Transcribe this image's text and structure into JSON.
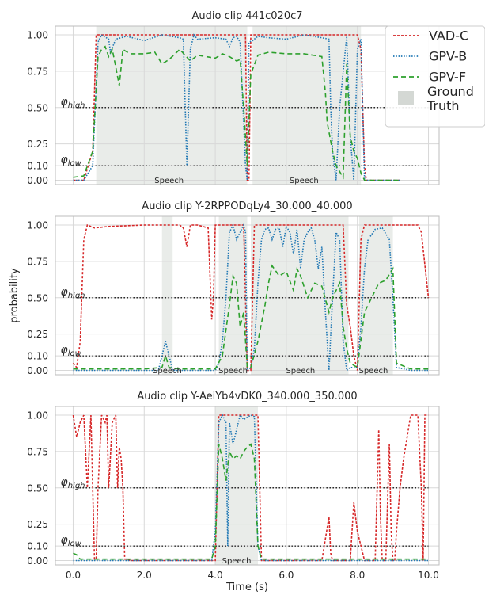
{
  "chart_data": {
    "type": "line",
    "xlabel": "Time (s)",
    "ylabel": "probability",
    "xlim": [
      -0.5,
      10.3
    ],
    "ylim": [
      -0.03,
      1.06
    ],
    "x_ticks": [
      "0.0",
      "2.0",
      "4.0",
      "6.0",
      "8.0",
      "10.0"
    ],
    "x_tick_values": [
      0,
      2,
      4,
      6,
      8,
      10
    ],
    "y_ticks": [
      "0.00",
      "0.10",
      "0.25",
      "0.50",
      "0.75",
      "1.00"
    ],
    "y_tick_values": [
      0,
      0.1,
      0.25,
      0.5,
      0.75,
      1.0
    ],
    "grid": true,
    "thresholds": [
      {
        "value": 0.5,
        "label": "φ",
        "sub": "high"
      },
      {
        "value": 0.1,
        "label": "φ",
        "sub": "low"
      }
    ],
    "legend": {
      "placement": "top-right",
      "entries": [
        {
          "name": "VAD-C",
          "color": "#d62728",
          "style": "dotted-dense"
        },
        {
          "name": "GPV-B",
          "color": "#1f77b4",
          "style": "dotted"
        },
        {
          "name": "GPV-F",
          "color": "#2ca02c",
          "style": "dashed"
        },
        {
          "name": "Ground\nTruth",
          "color": "#d4d8d4",
          "style": "patch"
        }
      ]
    },
    "panels": [
      {
        "title": "Audio clip 441c020c7",
        "ground_truth": [
          {
            "start": 0.65,
            "end": 4.9,
            "label": "Speech"
          },
          {
            "start": 5.05,
            "end": 8.1,
            "label": "Speech"
          }
        ],
        "series": [
          {
            "name": "VAD-C",
            "x": [
              0,
              0.3,
              0.55,
              0.65,
              1.0,
              2.0,
              3.0,
              4.0,
              4.85,
              4.9,
              4.95,
              5.0,
              6.0,
              7.0,
              7.5,
              8.0,
              8.1,
              8.2,
              8.25,
              9.2
            ],
            "y": [
              0,
              0,
              0.2,
              1.0,
              1.0,
              1.0,
              1.0,
              1.0,
              1.0,
              0.0,
              0.0,
              1.0,
              1.0,
              1.0,
              1.0,
              1.0,
              0.9,
              0.1,
              0.0,
              0.0
            ]
          },
          {
            "name": "GPV-B",
            "x": [
              0,
              0.3,
              0.55,
              0.7,
              0.8,
              1.0,
              1.05,
              1.2,
              1.5,
              2.0,
              2.5,
              3.0,
              3.1,
              3.2,
              3.3,
              3.4,
              3.5,
              4.0,
              4.3,
              4.4,
              4.5,
              4.6,
              4.7,
              4.85,
              4.9,
              4.95,
              5.05,
              5.2,
              5.5,
              6.0,
              6.5,
              7.0,
              7.2,
              7.25,
              7.3,
              7.4,
              7.5,
              7.7,
              7.8,
              7.9,
              8.0,
              8.1,
              8.2,
              9.2
            ],
            "y": [
              0,
              0,
              0.1,
              0.95,
              1.0,
              0.97,
              0.88,
              0.97,
              0.99,
              0.96,
              1.0,
              0.98,
              0.97,
              0.1,
              0.9,
              1.0,
              0.97,
              0.98,
              0.97,
              0.92,
              0.98,
              0.99,
              0.95,
              0.1,
              0.0,
              0.95,
              0.96,
              0.99,
              0.98,
              0.97,
              1.0,
              0.98,
              0.97,
              0.5,
              0.2,
              0.0,
              0.5,
              0.99,
              0.3,
              0.0,
              0.9,
              0.97,
              0.0,
              0.0
            ]
          },
          {
            "name": "GPV-F",
            "x": [
              0,
              0.3,
              0.55,
              0.7,
              0.8,
              0.9,
              1.0,
              1.1,
              1.2,
              1.3,
              1.4,
              1.6,
              2.0,
              2.3,
              2.5,
              2.7,
              3.0,
              3.3,
              3.5,
              4.0,
              4.2,
              4.4,
              4.6,
              4.7,
              4.8,
              4.85,
              4.9,
              5.0,
              5.2,
              5.5,
              6.0,
              6.5,
              7.0,
              7.1,
              7.15,
              7.3,
              7.4,
              7.6,
              7.7,
              7.8,
              7.9,
              8.0,
              8.1,
              8.2,
              9.2
            ],
            "y": [
              0.02,
              0.03,
              0.2,
              0.85,
              0.9,
              0.92,
              0.85,
              0.9,
              0.78,
              0.65,
              0.9,
              0.87,
              0.87,
              0.88,
              0.8,
              0.83,
              0.9,
              0.82,
              0.86,
              0.84,
              0.87,
              0.85,
              0.82,
              0.83,
              0.5,
              0.3,
              0.1,
              0.73,
              0.86,
              0.88,
              0.87,
              0.87,
              0.85,
              0.6,
              0.4,
              0.2,
              0.1,
              0.02,
              0.8,
              0.3,
              0.2,
              0.15,
              0.05,
              0.0,
              0.0
            ]
          }
        ],
        "gt_label_x": [
          2.7,
          6.5
        ]
      },
      {
        "title": "Audio clip Y-2RPPODqLy4_30.000_40.000",
        "ground_truth": [
          {
            "start": 2.5,
            "end": 2.8,
            "label": "Speech"
          },
          {
            "start": 4.1,
            "end": 4.9,
            "label": "Speech"
          },
          {
            "start": 5.0,
            "end": 7.75,
            "label": "Speech"
          },
          {
            "start": 8.05,
            "end": 9.0,
            "label": "Speech"
          }
        ],
        "series": [
          {
            "name": "VAD-C",
            "x": [
              0,
              0.1,
              0.2,
              0.3,
              0.4,
              0.6,
              1.0,
              2.0,
              3.0,
              3.1,
              3.2,
              3.3,
              3.5,
              3.8,
              3.9,
              3.95,
              4.0,
              4.1,
              4.5,
              4.8,
              4.9,
              5.0,
              5.1,
              6.0,
              7.0,
              7.5,
              7.6,
              7.7,
              7.8,
              7.9,
              8.0,
              8.1,
              8.2,
              9.0,
              9.5,
              9.7,
              9.8,
              10.0
            ],
            "y": [
              0.05,
              0.02,
              0.2,
              0.9,
              1.0,
              0.98,
              0.99,
              1.0,
              1.0,
              0.98,
              0.85,
              1.0,
              1.0,
              0.98,
              0.35,
              0.5,
              1.0,
              1.0,
              1.0,
              1.0,
              0.0,
              0.0,
              1.0,
              1.0,
              1.0,
              1.0,
              1.0,
              0.45,
              0.3,
              0.1,
              0.0,
              0.9,
              1.0,
              1.0,
              1.0,
              1.0,
              0.95,
              0.5
            ]
          },
          {
            "name": "GPV-B",
            "x": [
              0,
              0.5,
              1.0,
              2.0,
              2.4,
              2.5,
              2.6,
              2.7,
              2.8,
              3.0,
              4.0,
              4.1,
              4.2,
              4.3,
              4.4,
              4.5,
              4.6,
              4.7,
              4.8,
              4.85,
              4.9,
              5.0,
              5.1,
              5.2,
              5.3,
              5.4,
              5.5,
              5.6,
              5.7,
              5.8,
              5.9,
              6.0,
              6.1,
              6.2,
              6.3,
              6.4,
              6.5,
              6.6,
              6.7,
              6.8,
              6.9,
              7.0,
              7.1,
              7.2,
              7.3,
              7.4,
              7.5,
              7.6,
              7.7,
              7.8,
              7.9,
              8.0,
              8.1,
              8.2,
              8.3,
              8.5,
              8.7,
              8.9,
              9.0,
              9.1,
              9.5,
              10.0
            ],
            "y": [
              0,
              0,
              0,
              0,
              0,
              0.1,
              0.2,
              0.1,
              0.0,
              0.0,
              0.0,
              0.05,
              0.2,
              0.5,
              0.95,
              1.0,
              0.9,
              0.95,
              1.0,
              0.95,
              0.0,
              0.02,
              0.15,
              0.6,
              0.9,
              0.97,
              0.98,
              0.9,
              0.97,
              0.98,
              0.85,
              0.99,
              0.95,
              0.8,
              0.97,
              0.7,
              0.9,
              0.95,
              0.98,
              0.9,
              0.7,
              0.85,
              0.4,
              0.0,
              0.5,
              0.95,
              0.9,
              0.2,
              0.0,
              0.02,
              0.02,
              0.02,
              0.3,
              0.7,
              0.9,
              0.97,
              0.98,
              0.9,
              0.5,
              0.02,
              0.0,
              0.0
            ]
          },
          {
            "name": "GPV-F",
            "x": [
              0,
              0.5,
              1.0,
              2.0,
              2.5,
              2.6,
              2.7,
              3.0,
              4.0,
              4.2,
              4.4,
              4.5,
              4.6,
              4.7,
              4.8,
              4.9,
              5.0,
              5.2,
              5.4,
              5.5,
              5.6,
              5.8,
              6.0,
              6.2,
              6.3,
              6.4,
              6.6,
              6.8,
              7.0,
              7.2,
              7.3,
              7.5,
              7.6,
              7.7,
              7.8,
              8.0,
              8.2,
              8.4,
              8.6,
              8.8,
              9.0,
              9.1,
              9.5,
              10.0
            ],
            "y": [
              0.01,
              0.01,
              0.01,
              0.01,
              0.02,
              0.1,
              0.02,
              0.01,
              0.01,
              0.1,
              0.45,
              0.65,
              0.6,
              0.3,
              0.4,
              0.02,
              0.02,
              0.2,
              0.45,
              0.6,
              0.72,
              0.65,
              0.68,
              0.55,
              0.7,
              0.65,
              0.5,
              0.6,
              0.58,
              0.4,
              0.5,
              0.6,
              0.3,
              0.15,
              0.05,
              0.02,
              0.4,
              0.5,
              0.6,
              0.62,
              0.7,
              0.05,
              0.01,
              0.01
            ]
          }
        ],
        "gt_label_x": [
          2.65,
          4.5,
          6.4,
          8.45
        ]
      },
      {
        "title": "Audio clip Y-AeiYb4vDK0_340.000_350.000",
        "ground_truth": [
          {
            "start": 4.0,
            "end": 5.2,
            "label": "Speech"
          }
        ],
        "series": [
          {
            "name": "VAD-C",
            "x": [
              0,
              0.1,
              0.2,
              0.3,
              0.4,
              0.5,
              0.6,
              0.65,
              0.7,
              0.8,
              0.9,
              0.95,
              1.0,
              1.1,
              1.2,
              1.25,
              1.3,
              1.35,
              1.4,
              1.45,
              1.5,
              1.6,
              4.0,
              4.1,
              5.1,
              5.2,
              5.3,
              7.0,
              7.2,
              7.25,
              7.3,
              7.5,
              7.8,
              7.9,
              8.0,
              8.1,
              8.2,
              8.3,
              8.5,
              8.6,
              8.65,
              8.7,
              8.8,
              8.9,
              8.95,
              9.0,
              9.05,
              9.1,
              9.2,
              9.3,
              9.5,
              9.6,
              9.7,
              9.8,
              9.85,
              9.9,
              10.0
            ],
            "y": [
              1.0,
              0.85,
              0.95,
              1.0,
              0.5,
              1.0,
              0.01,
              0.01,
              0.5,
              1.0,
              0.95,
              1.0,
              0.5,
              0.95,
              1.0,
              0.5,
              0.78,
              0.7,
              0.5,
              0.01,
              0.01,
              0.0,
              0.0,
              1.0,
              1.0,
              1.0,
              0.0,
              0.0,
              0.3,
              0.05,
              0.0,
              0.0,
              0.0,
              0.4,
              0.2,
              0.1,
              0.0,
              0.0,
              0.0,
              0.9,
              0.3,
              0.0,
              0.0,
              0.8,
              0.2,
              0.0,
              0.0,
              0.2,
              0.5,
              0.7,
              1.0,
              1.0,
              1.0,
              0.5,
              0.0,
              1.0,
              1.0
            ]
          },
          {
            "name": "GPV-B",
            "x": [
              0,
              0.5,
              1.0,
              2.0,
              3.0,
              3.9,
              4.0,
              4.1,
              4.2,
              4.3,
              4.35,
              4.4,
              4.5,
              4.6,
              4.7,
              4.8,
              5.0,
              5.1,
              5.2,
              5.3,
              6.0,
              7.0,
              8.0,
              9.0,
              10.0
            ],
            "y": [
              0,
              0,
              0,
              0,
              0,
              0,
              0.2,
              0.95,
              1.0,
              0.95,
              0.1,
              0.95,
              0.8,
              0.9,
              1.0,
              0.97,
              1.0,
              0.99,
              0.1,
              0.0,
              0.0,
              0.0,
              0.0,
              0.0,
              0.0
            ]
          },
          {
            "name": "GPV-F",
            "x": [
              0,
              0.1,
              0.2,
              0.5,
              1.0,
              2.0,
              3.0,
              3.9,
              4.0,
              4.1,
              4.2,
              4.3,
              4.4,
              4.5,
              4.6,
              4.7,
              4.8,
              4.9,
              5.0,
              5.1,
              5.2,
              5.3,
              6.0,
              7.0,
              8.0,
              9.0,
              10.0
            ],
            "y": [
              0.05,
              0.04,
              0.01,
              0.01,
              0.01,
              0.01,
              0.01,
              0.01,
              0.1,
              0.8,
              0.7,
              0.55,
              0.75,
              0.7,
              0.72,
              0.7,
              0.75,
              0.78,
              0.8,
              0.7,
              0.1,
              0.01,
              0.01,
              0.01,
              0.01,
              0.01,
              0.01
            ]
          }
        ],
        "gt_label_x": [
          4.6
        ]
      }
    ]
  }
}
